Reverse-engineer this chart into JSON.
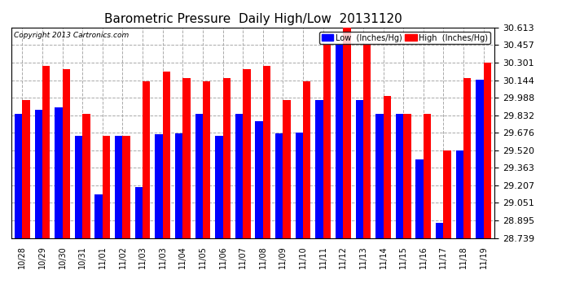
{
  "title": "Barometric Pressure  Daily High/Low  20131120",
  "copyright": "Copyright 2013 Cartronics.com",
  "labels": [
    "10/28",
    "10/29",
    "10/30",
    "10/31",
    "11/01",
    "11/02",
    "11/03",
    "11/03",
    "11/04",
    "11/05",
    "11/06",
    "11/07",
    "11/08",
    "11/09",
    "11/10",
    "11/11",
    "11/12",
    "11/13",
    "11/14",
    "11/15",
    "11/16",
    "11/17",
    "11/18",
    "11/19"
  ],
  "low": [
    29.84,
    29.88,
    29.9,
    29.65,
    29.13,
    29.65,
    29.19,
    29.66,
    29.67,
    29.84,
    29.65,
    29.84,
    29.78,
    29.67,
    29.68,
    29.97,
    30.46,
    29.97,
    29.84,
    29.84,
    29.44,
    28.87,
    29.52,
    30.15
  ],
  "high": [
    29.97,
    30.27,
    30.24,
    29.84,
    29.65,
    29.65,
    30.13,
    30.22,
    30.16,
    30.13,
    30.16,
    30.24,
    30.27,
    29.97,
    30.13,
    30.46,
    30.62,
    30.46,
    30.0,
    29.84,
    29.84,
    29.52,
    30.16,
    30.3
  ],
  "ymin": 28.739,
  "ymax": 30.613,
  "yticks": [
    28.739,
    28.895,
    29.051,
    29.207,
    29.363,
    29.52,
    29.676,
    29.832,
    29.988,
    30.144,
    30.301,
    30.457,
    30.613
  ],
  "low_color": "#0000ff",
  "high_color": "#ff0000",
  "bg_color": "#ffffff",
  "grid_color": "#aaaaaa",
  "bar_width": 0.38,
  "title_fontsize": 11
}
